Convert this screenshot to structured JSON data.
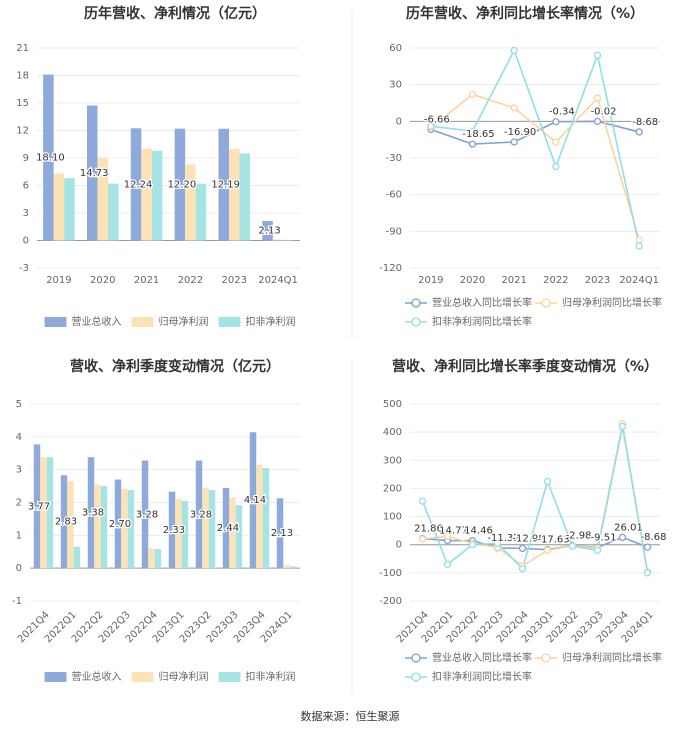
{
  "chart_data": [
    {
      "type": "bar",
      "title": "历年营收、净利情况（亿元）",
      "categories": [
        "2019",
        "2020",
        "2021",
        "2022",
        "2023",
        "2024Q1"
      ],
      "series": [
        {
          "name": "营业总收入",
          "color": "#8eaadb",
          "values": [
            18.1,
            14.73,
            12.24,
            12.2,
            12.19,
            2.13
          ],
          "value_labels": [
            "18.10",
            "14.73",
            "12.24",
            "12.20",
            "12.19",
            "2.13"
          ]
        },
        {
          "name": "归母净利润",
          "color": "#fde2b6",
          "values": [
            7.3,
            9.0,
            10.0,
            8.3,
            10.0,
            0.1
          ]
        },
        {
          "name": "扣非净利润",
          "color": "#a6e3e3",
          "values": [
            6.8,
            6.2,
            9.8,
            6.2,
            9.5,
            0.05
          ]
        }
      ],
      "ylim": [
        -3,
        21
      ],
      "yticks": [
        -3,
        0,
        3,
        6,
        9,
        12,
        15,
        18,
        21
      ],
      "grid": true
    },
    {
      "type": "line",
      "title": "历年营收、净利同比增长率情况（%）",
      "categories": [
        "2019",
        "2020",
        "2021",
        "2022",
        "2023",
        "2024Q1"
      ],
      "series": [
        {
          "name": "营业总收入同比增长率",
          "color": "#7f9fd6",
          "values": [
            -6.66,
            -18.65,
            -16.9,
            -0.34,
            -0.02,
            -8.68
          ],
          "value_labels": [
            "-6.66",
            "-18.65",
            "-16.90",
            "-0.34",
            "-0.02",
            "-8.68"
          ]
        },
        {
          "name": "归母净利润同比增长率",
          "color": "#fcd49a",
          "values": [
            -5,
            22,
            11,
            -17,
            19,
            -97
          ]
        },
        {
          "name": "扣非净利润同比增长率",
          "color": "#8ee0e6",
          "values": [
            -4,
            -8,
            58,
            -37,
            54,
            -102
          ]
        }
      ],
      "ylim": [
        -120,
        60
      ],
      "yticks": [
        -120,
        -90,
        -60,
        -30,
        0,
        30,
        60
      ],
      "grid": true
    },
    {
      "type": "bar",
      "title": "营收、净利季度变动情况（亿元）",
      "categories": [
        "2021Q4",
        "2022Q1",
        "2022Q2",
        "2022Q3",
        "2022Q4",
        "2023Q1",
        "2023Q2",
        "2023Q3",
        "2023Q4",
        "2024Q1"
      ],
      "series": [
        {
          "name": "营业总收入",
          "color": "#8eaadb",
          "values": [
            3.77,
            2.83,
            3.38,
            2.7,
            3.28,
            2.33,
            3.28,
            2.44,
            4.14,
            2.13
          ],
          "value_labels": [
            "3.77",
            "2.83",
            "3.38",
            "2.70",
            "3.28",
            "2.33",
            "3.28",
            "2.44",
            "4.14",
            "2.13"
          ]
        },
        {
          "name": "归母净利润",
          "color": "#fde2b6",
          "values": [
            3.38,
            2.65,
            2.55,
            2.42,
            0.6,
            2.1,
            2.45,
            2.15,
            3.15,
            0.1
          ]
        },
        {
          "name": "扣非净利润",
          "color": "#a6e3e3",
          "values": [
            3.38,
            0.65,
            2.5,
            2.38,
            0.58,
            2.05,
            2.38,
            1.92,
            3.05,
            0.05
          ]
        }
      ],
      "ylim": [
        -1,
        5
      ],
      "yticks": [
        -1,
        0,
        1,
        2,
        3,
        4,
        5
      ],
      "grid": true
    },
    {
      "type": "line",
      "title": "营收、净利同比增长率季度变动情况（%）",
      "categories": [
        "2021Q4",
        "2022Q1",
        "2022Q2",
        "2022Q3",
        "2022Q4",
        "2023Q1",
        "2023Q2",
        "2023Q3",
        "2023Q4",
        "2024Q1"
      ],
      "series": [
        {
          "name": "营业总收入同比增长率",
          "color": "#7f9fd6",
          "values": [
            21.86,
            14.77,
            14.46,
            -11.32,
            -12.98,
            -17.63,
            -2.98,
            -9.51,
            26.01,
            -8.68
          ],
          "value_labels": [
            "21.86",
            "14.77",
            "14.46",
            "-11.32",
            "-12.98",
            "-17.63",
            "-2.98",
            "-9.51",
            "26.01",
            "-8.68"
          ]
        },
        {
          "name": "归母净利润同比增长率",
          "color": "#fcd49a",
          "values": [
            20,
            30,
            5,
            -10,
            -75,
            -20,
            -4,
            -12,
            430,
            -97
          ]
        },
        {
          "name": "扣非净利润同比增长率",
          "color": "#8ee0e6",
          "values": [
            155,
            -70,
            0,
            5,
            -85,
            225,
            -5,
            -20,
            420,
            -100
          ]
        }
      ],
      "ylim": [
        -200,
        500
      ],
      "yticks": [
        -200,
        -100,
        0,
        100,
        200,
        300,
        400,
        500
      ],
      "grid": true
    }
  ],
  "source": "数据来源：恒生聚源"
}
